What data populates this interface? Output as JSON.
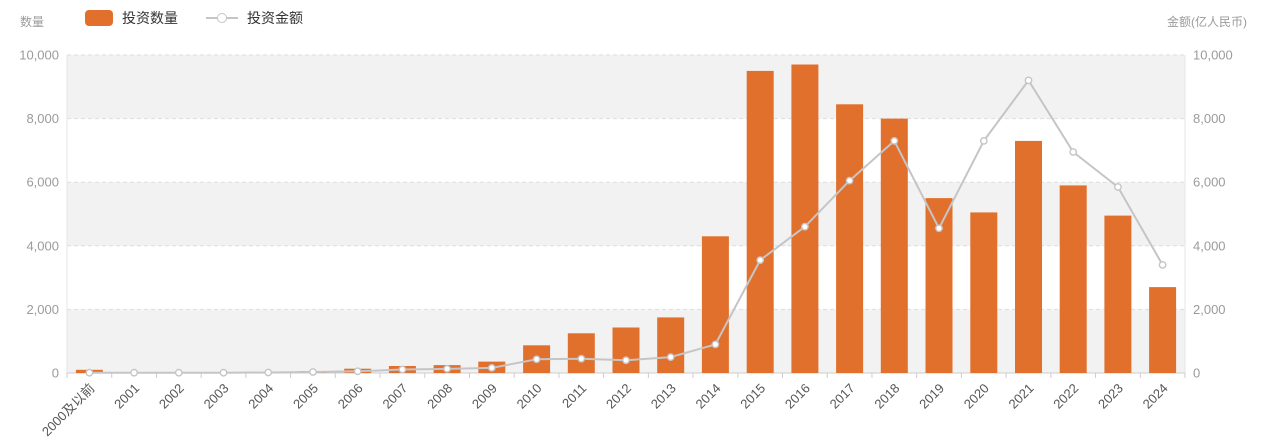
{
  "chart_data": {
    "type": "bar",
    "subtype": "bar-line-combo",
    "categories": [
      "2000及以前",
      "2001",
      "2002",
      "2003",
      "2004",
      "2005",
      "2006",
      "2007",
      "2008",
      "2009",
      "2010",
      "2011",
      "2012",
      "2013",
      "2014",
      "2015",
      "2016",
      "2017",
      "2018",
      "2019",
      "2020",
      "2021",
      "2022",
      "2023",
      "2024"
    ],
    "series": [
      {
        "name": "投资数量",
        "type": "bar",
        "axis": "left",
        "color": "#e1702d",
        "values": [
          100,
          30,
          20,
          20,
          25,
          60,
          135,
          220,
          250,
          360,
          870,
          1250,
          1430,
          1750,
          4300,
          9500,
          9700,
          8450,
          8000,
          5500,
          5050,
          7300,
          5900,
          4950,
          2700
        ]
      },
      {
        "name": "投资金额",
        "type": "line",
        "axis": "right",
        "color": "#c5c5c7",
        "marker": "open-circle",
        "marker_fill": "#ffffff",
        "values": [
          10,
          10,
          10,
          10,
          15,
          30,
          55,
          110,
          130,
          160,
          430,
          450,
          400,
          500,
          900,
          3550,
          4600,
          6050,
          7300,
          4550,
          7300,
          9200,
          6950,
          5850,
          3400
        ]
      }
    ],
    "left_axis": {
      "name": "数量",
      "min": 0,
      "max": 10000,
      "tick_values": [
        0,
        2000,
        4000,
        6000,
        8000,
        10000
      ],
      "tick_labels": [
        "0",
        "2,000",
        "4,000",
        "6,000",
        "8,000",
        "10,000"
      ]
    },
    "right_axis": {
      "name": "金额(亿人民币)",
      "min": 0,
      "max": 10000,
      "tick_values": [
        0,
        2000,
        4000,
        6000,
        8000,
        10000
      ],
      "tick_labels": [
        "0",
        "2,000",
        "4,000",
        "6,000",
        "8,000",
        "10,000"
      ]
    },
    "legend": {
      "position": "top-left",
      "items": [
        "投资数量",
        "投资金额"
      ]
    },
    "grid": {
      "stripes": true,
      "stripe_color": "#f2f2f2",
      "gridline_color": "#dddddd",
      "gridline_style": "dashed",
      "axis_line_color": "#cccccc",
      "x_label_rotation": -45
    },
    "text_colors": {
      "axis_name": "#9b9b9b",
      "y_tick": "#9b9b9b",
      "x_tick": "#555555",
      "legend": "#333333"
    }
  }
}
